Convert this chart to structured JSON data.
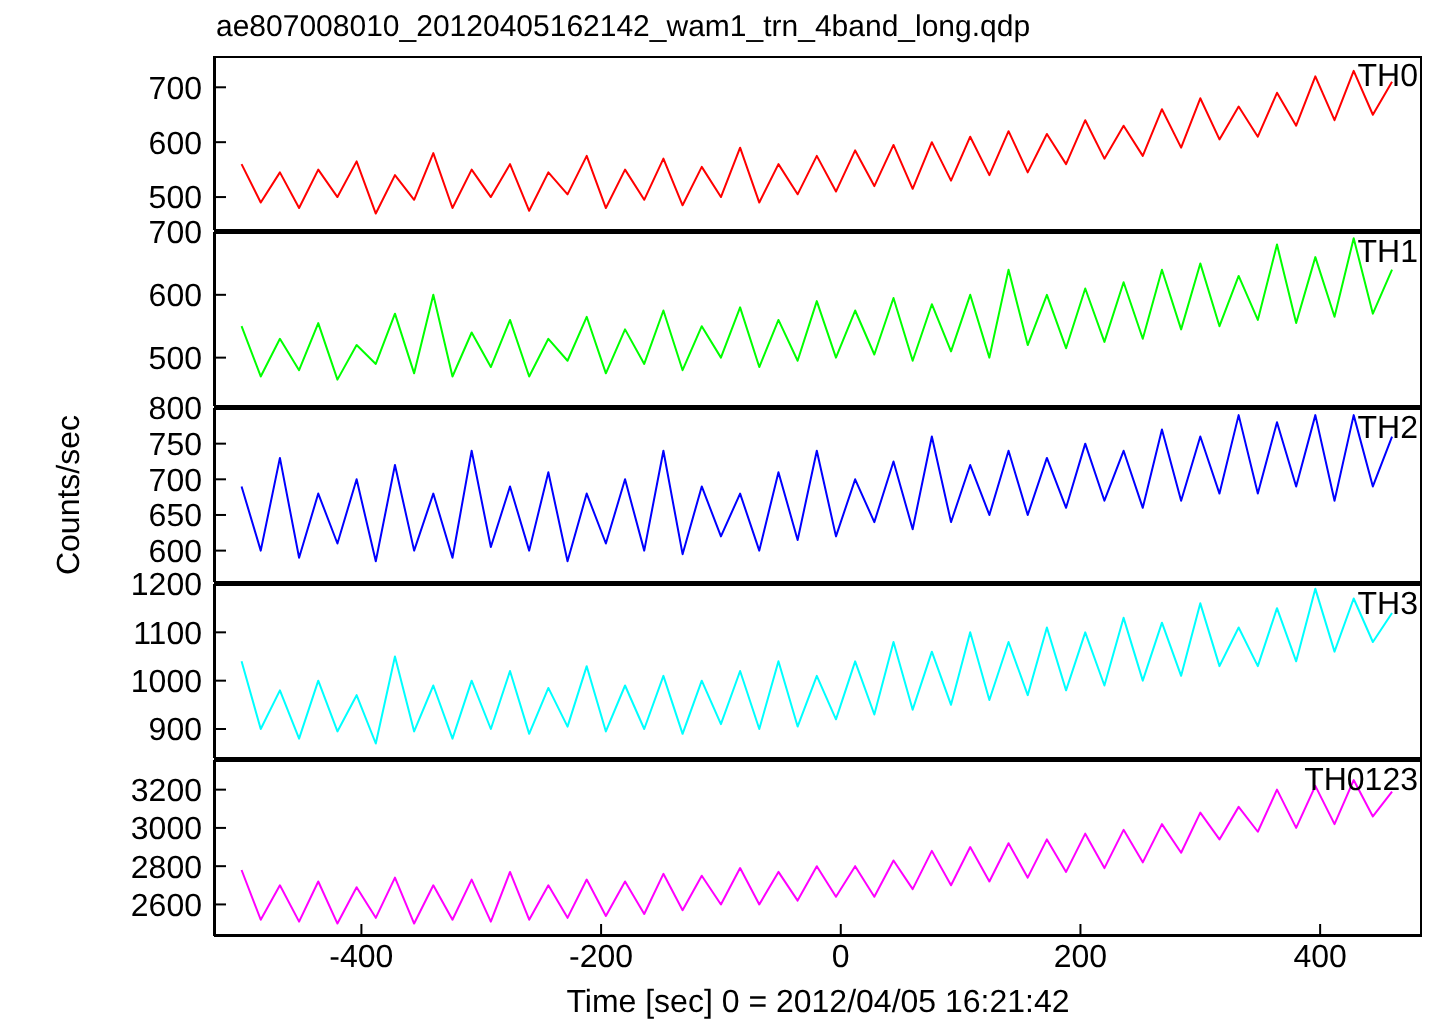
{
  "chart_data": [
    {
      "type": "line",
      "title": "ae807008010_20120405162142_wam1_trn_4band_long.qdp",
      "x": [
        -500,
        -484,
        -468,
        -452,
        -436,
        -420,
        -404,
        -388,
        -372,
        -356,
        -340,
        -324,
        -308,
        -292,
        -276,
        -260,
        -244,
        -228,
        -212,
        -196,
        -180,
        -164,
        -148,
        -132,
        -116,
        -100,
        -84,
        -68,
        -52,
        -36,
        -20,
        -4,
        12,
        28,
        44,
        60,
        76,
        92,
        108,
        124,
        140,
        156,
        172,
        188,
        204,
        220,
        236,
        252,
        268,
        284,
        300,
        316,
        332,
        348,
        364,
        380,
        396,
        412,
        428,
        444,
        460
      ],
      "xlim": [
        -523,
        485
      ],
      "xticks": [
        -400,
        -200,
        0,
        200,
        400
      ],
      "ylim": [
        440,
        757
      ],
      "yticks": [
        500,
        600,
        700
      ],
      "tick_labels": "y",
      "legend": false,
      "marker": "none",
      "series": [
        {
          "name": "TH0",
          "color": "#ff0000",
          "values": [
            560,
            490,
            545,
            480,
            550,
            500,
            565,
            470,
            540,
            495,
            580,
            480,
            550,
            500,
            560,
            475,
            545,
            505,
            575,
            480,
            550,
            495,
            570,
            485,
            555,
            500,
            590,
            490,
            560,
            505,
            575,
            510,
            585,
            520,
            595,
            515,
            600,
            530,
            610,
            540,
            620,
            545,
            615,
            560,
            640,
            570,
            630,
            575,
            660,
            590,
            680,
            605,
            665,
            610,
            690,
            630,
            720,
            640,
            730,
            650,
            710
          ]
        }
      ]
    },
    {
      "type": "line",
      "x": [
        -500,
        -484,
        -468,
        -452,
        -436,
        -420,
        -404,
        -388,
        -372,
        -356,
        -340,
        -324,
        -308,
        -292,
        -276,
        -260,
        -244,
        -228,
        -212,
        -196,
        -180,
        -164,
        -148,
        -132,
        -116,
        -100,
        -84,
        -68,
        -52,
        -36,
        -20,
        -4,
        12,
        28,
        44,
        60,
        76,
        92,
        108,
        124,
        140,
        156,
        172,
        188,
        204,
        220,
        236,
        252,
        268,
        284,
        300,
        316,
        332,
        348,
        364,
        380,
        396,
        412,
        428,
        444,
        460
      ],
      "xlim": [
        -523,
        485
      ],
      "xticks": [
        -400,
        -200,
        0,
        200,
        400
      ],
      "ylim": [
        423,
        700
      ],
      "yticks": [
        500,
        600,
        700
      ],
      "tick_labels": "y",
      "legend": false,
      "marker": "none",
      "series": [
        {
          "name": "TH1",
          "color": "#00ff00",
          "values": [
            550,
            470,
            530,
            480,
            555,
            465,
            520,
            490,
            570,
            475,
            600,
            470,
            540,
            485,
            560,
            470,
            530,
            495,
            565,
            475,
            545,
            490,
            575,
            480,
            550,
            500,
            580,
            485,
            560,
            495,
            590,
            500,
            575,
            505,
            595,
            495,
            585,
            510,
            600,
            500,
            640,
            520,
            600,
            515,
            610,
            525,
            620,
            530,
            640,
            545,
            650,
            550,
            630,
            560,
            680,
            555,
            660,
            565,
            690,
            570,
            640
          ]
        }
      ]
    },
    {
      "type": "line",
      "ylabel": "Counts/sec",
      "x": [
        -500,
        -484,
        -468,
        -452,
        -436,
        -420,
        -404,
        -388,
        -372,
        -356,
        -340,
        -324,
        -308,
        -292,
        -276,
        -260,
        -244,
        -228,
        -212,
        -196,
        -180,
        -164,
        -148,
        -132,
        -116,
        -100,
        -84,
        -68,
        -52,
        -36,
        -20,
        -4,
        12,
        28,
        44,
        60,
        76,
        92,
        108,
        124,
        140,
        156,
        172,
        188,
        204,
        220,
        236,
        252,
        268,
        284,
        300,
        316,
        332,
        348,
        364,
        380,
        396,
        412,
        428,
        444,
        460
      ],
      "xlim": [
        -523,
        485
      ],
      "xticks": [
        -400,
        -200,
        0,
        200,
        400
      ],
      "ylim": [
        556,
        800
      ],
      "yticks": [
        600,
        650,
        700,
        750,
        800
      ],
      "tick_labels": "y",
      "legend": false,
      "marker": "none",
      "series": [
        {
          "name": "TH2",
          "color": "#0000ff",
          "values": [
            690,
            600,
            730,
            590,
            680,
            610,
            700,
            585,
            720,
            600,
            680,
            590,
            740,
            605,
            690,
            600,
            710,
            585,
            680,
            610,
            700,
            600,
            740,
            595,
            690,
            620,
            680,
            600,
            710,
            615,
            740,
            620,
            700,
            640,
            725,
            630,
            760,
            640,
            720,
            650,
            740,
            650,
            730,
            660,
            750,
            670,
            740,
            660,
            770,
            670,
            760,
            680,
            790,
            680,
            780,
            690,
            790,
            670,
            790,
            690,
            760
          ]
        }
      ]
    },
    {
      "type": "line",
      "x": [
        -500,
        -484,
        -468,
        -452,
        -436,
        -420,
        -404,
        -388,
        -372,
        -356,
        -340,
        -324,
        -308,
        -292,
        -276,
        -260,
        -244,
        -228,
        -212,
        -196,
        -180,
        -164,
        -148,
        -132,
        -116,
        -100,
        -84,
        -68,
        -52,
        -36,
        -20,
        -4,
        12,
        28,
        44,
        60,
        76,
        92,
        108,
        124,
        140,
        156,
        172,
        188,
        204,
        220,
        236,
        252,
        268,
        284,
        300,
        316,
        332,
        348,
        364,
        380,
        396,
        412,
        428,
        444,
        460
      ],
      "xlim": [
        -523,
        485
      ],
      "xticks": [
        -400,
        -200,
        0,
        200,
        400
      ],
      "ylim": [
        840,
        1200
      ],
      "yticks": [
        900,
        1000,
        1100,
        1200
      ],
      "tick_labels": "y",
      "legend": false,
      "marker": "none",
      "series": [
        {
          "name": "TH3",
          "color": "#00ffff",
          "values": [
            1040,
            900,
            980,
            880,
            1000,
            895,
            970,
            870,
            1050,
            895,
            990,
            880,
            1000,
            900,
            1020,
            890,
            985,
            905,
            1030,
            895,
            990,
            900,
            1010,
            890,
            1000,
            910,
            1020,
            900,
            1040,
            905,
            1010,
            920,
            1040,
            930,
            1080,
            940,
            1060,
            950,
            1100,
            960,
            1080,
            970,
            1110,
            980,
            1100,
            990,
            1130,
            1000,
            1120,
            1010,
            1160,
            1030,
            1110,
            1030,
            1150,
            1040,
            1190,
            1060,
            1170,
            1080,
            1140
          ]
        }
      ]
    },
    {
      "type": "line",
      "xlabel": "Time [sec] 0 = 2012/04/05 16:21:42",
      "x": [
        -500,
        -484,
        -468,
        -452,
        -436,
        -420,
        -404,
        -388,
        -372,
        -356,
        -340,
        -324,
        -308,
        -292,
        -276,
        -260,
        -244,
        -228,
        -212,
        -196,
        -180,
        -164,
        -148,
        -132,
        -116,
        -100,
        -84,
        -68,
        -52,
        -36,
        -20,
        -4,
        12,
        28,
        44,
        60,
        76,
        92,
        108,
        124,
        140,
        156,
        172,
        188,
        204,
        220,
        236,
        252,
        268,
        284,
        300,
        316,
        332,
        348,
        364,
        380,
        396,
        412,
        428,
        444,
        460
      ],
      "xlim": [
        -523,
        485
      ],
      "xticks": [
        -400,
        -200,
        0,
        200,
        400
      ],
      "ylim": [
        2435,
        3355
      ],
      "yticks": [
        2600,
        2800,
        3000,
        3200
      ],
      "legend": false,
      "marker": "none",
      "series": [
        {
          "name": "TH0123",
          "color": "#ff00ff",
          "values": [
            2780,
            2520,
            2700,
            2510,
            2720,
            2500,
            2690,
            2530,
            2740,
            2500,
            2700,
            2520,
            2730,
            2510,
            2770,
            2520,
            2700,
            2530,
            2730,
            2540,
            2720,
            2550,
            2760,
            2570,
            2750,
            2600,
            2790,
            2600,
            2770,
            2620,
            2800,
            2640,
            2800,
            2640,
            2830,
            2680,
            2880,
            2700,
            2900,
            2720,
            2920,
            2740,
            2940,
            2770,
            2970,
            2790,
            2990,
            2820,
            3020,
            2870,
            3080,
            2940,
            3110,
            2980,
            3200,
            3000,
            3220,
            3020,
            3250,
            3060,
            3190
          ]
        }
      ]
    }
  ]
}
